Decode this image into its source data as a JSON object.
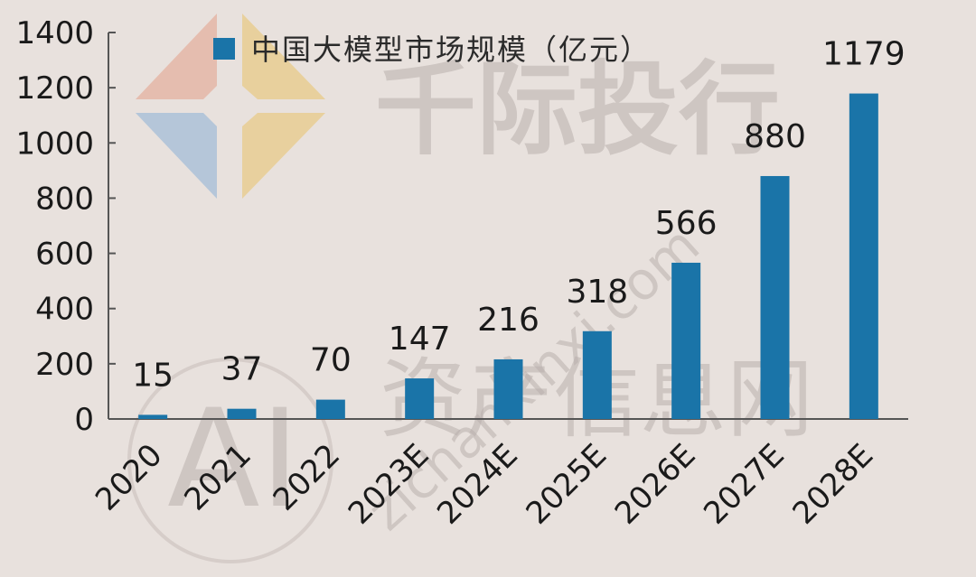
{
  "chart_data": {
    "type": "bar",
    "categories": [
      "2020",
      "2021",
      "2022",
      "2023E",
      "2024E",
      "2025E",
      "2026E",
      "2027E",
      "2028E"
    ],
    "series": [
      {
        "name": "中国大模型市场规模（亿元）",
        "values": [
          15,
          37,
          70,
          147,
          216,
          318,
          566,
          880,
          1179
        ],
        "color": "#1a74a8"
      }
    ],
    "ylim": [
      0,
      1400
    ],
    "yticks": [
      0,
      200,
      400,
      600,
      800,
      1000,
      1200,
      1400
    ],
    "grid": false,
    "legend_position": "top"
  },
  "watermark": {
    "brand": "千际投行",
    "site_name": "资产信息网",
    "site_url": "zichanxinxi.com",
    "badge": "AI",
    "logo_colors": [
      "#e4a08a",
      "#e8c36a",
      "#8ab0d6"
    ]
  }
}
